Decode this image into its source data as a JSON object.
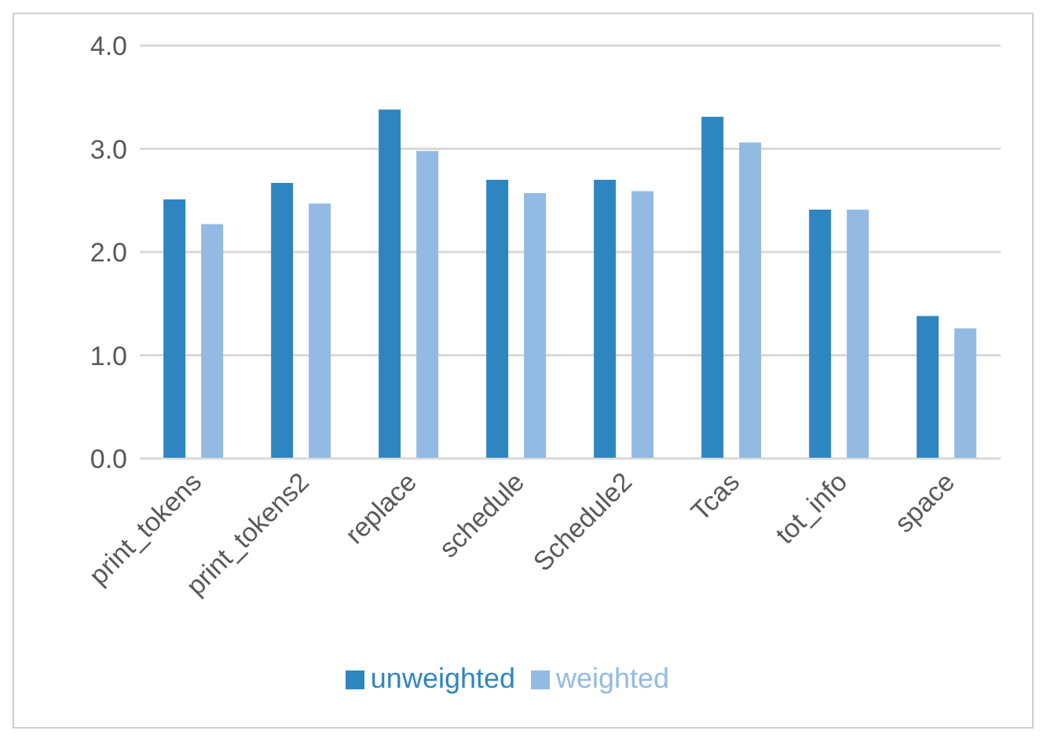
{
  "chart_data": {
    "type": "bar",
    "categories": [
      "print_tokens",
      "print_tokens2",
      "replace",
      "schedule",
      "Schedule2",
      "Tcas",
      "tot_info",
      "space"
    ],
    "series": [
      {
        "name": "unweighted",
        "color": "#2e86c1",
        "values": [
          2.51,
          2.67,
          3.38,
          2.7,
          2.7,
          3.31,
          2.41,
          1.38
        ]
      },
      {
        "name": "weighted",
        "color": "#93bae2",
        "values": [
          2.27,
          2.47,
          2.98,
          2.57,
          2.59,
          3.06,
          2.41,
          1.26
        ]
      }
    ],
    "ylim": [
      0,
      4
    ],
    "yticks": [
      {
        "value": 0,
        "label": "0.0"
      },
      {
        "value": 1,
        "label": "1.0"
      },
      {
        "value": 2,
        "label": "2.0"
      },
      {
        "value": 3,
        "label": "3.0"
      },
      {
        "value": 4,
        "label": "4.0"
      }
    ],
    "grid": "y",
    "legend": "bottom"
  }
}
